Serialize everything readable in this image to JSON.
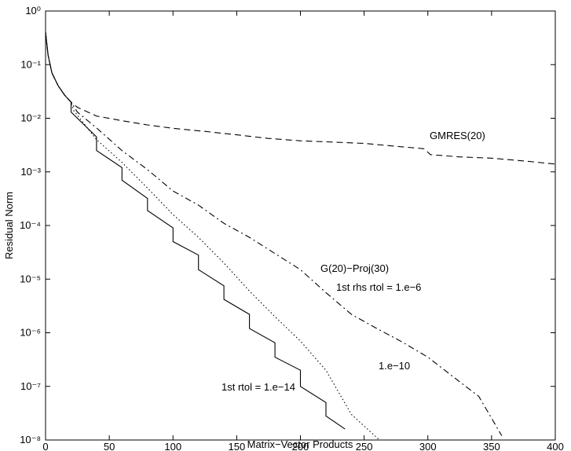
{
  "chart_data": {
    "type": "line",
    "ylog": true,
    "xlabel": "Matrix−Vector Products",
    "ylabel": "Residual Norm",
    "xlim": [
      0,
      400
    ],
    "xticks": [
      0,
      50,
      100,
      150,
      200,
      250,
      300,
      350,
      400
    ],
    "ylim": [
      1e-08,
      1
    ],
    "yticks": [
      {
        "value": 1e-08,
        "label": "10⁻⁸"
      },
      {
        "value": 1e-07,
        "label": "10⁻⁷"
      },
      {
        "value": 1e-06,
        "label": "10⁻⁶"
      },
      {
        "value": 1e-05,
        "label": "10⁻⁵"
      },
      {
        "value": 0.0001,
        "label": "10⁻⁴"
      },
      {
        "value": 0.001,
        "label": "10⁻³"
      },
      {
        "value": 0.01,
        "label": "10⁻²"
      },
      {
        "value": 0.1,
        "label": "10⁻¹"
      },
      {
        "value": 1,
        "label": "10⁰"
      }
    ],
    "series": [
      {
        "color": "#000000",
        "linestyle": "dashed",
        "x": [
          0,
          2,
          5,
          10,
          15,
          20,
          25,
          40,
          60,
          80,
          100,
          125,
          150,
          175,
          200,
          225,
          250,
          275,
          297,
          302,
          325,
          350,
          375,
          400
        ],
        "values": [
          0.4,
          0.15,
          0.07,
          0.04,
          0.027,
          0.02,
          0.016,
          0.011,
          0.009,
          0.0075,
          0.0065,
          0.0057,
          0.0049,
          0.0042,
          0.0038,
          0.0036,
          0.0034,
          0.003,
          0.0027,
          0.0021,
          0.0019,
          0.0018,
          0.0016,
          0.0014
        ]
      },
      {
        "color": "#000000",
        "linestyle": "dashdot",
        "x": [
          0,
          2,
          5,
          10,
          15,
          20,
          25,
          40,
          60,
          80,
          100,
          120,
          140,
          160,
          180,
          200,
          220,
          240,
          260,
          280,
          300,
          320,
          340,
          358
        ],
        "values": [
          0.4,
          0.15,
          0.07,
          0.04,
          0.027,
          0.02,
          0.013,
          0.0066,
          0.0025,
          0.0011,
          0.00044,
          0.00024,
          0.00011,
          6e-05,
          3e-05,
          1.5e-05,
          5.6e-06,
          2.2e-06,
          1.2e-06,
          6.7e-07,
          3.5e-07,
          1.5e-07,
          6.5e-08,
          1.2e-08
        ]
      },
      {
        "color": "#000000",
        "linestyle": "dotted",
        "x": [
          0,
          2,
          5,
          10,
          15,
          20,
          22,
          40,
          60,
          80,
          100,
          120,
          140,
          160,
          180,
          200,
          220,
          240,
          262
        ],
        "values": [
          0.4,
          0.15,
          0.07,
          0.04,
          0.027,
          0.02,
          0.014,
          0.004,
          0.0015,
          0.0005,
          0.00016,
          6e-05,
          2e-05,
          6e-06,
          2e-06,
          7e-07,
          2e-07,
          3e-08,
          1e-08
        ]
      },
      {
        "color": "#000000",
        "linestyle": "solid",
        "x": [
          0,
          2,
          5,
          10,
          15,
          20,
          20,
          40,
          40,
          60,
          60,
          80,
          80,
          100,
          100,
          120,
          120,
          140,
          140,
          160,
          160,
          180,
          180,
          200,
          200,
          220,
          220,
          235
        ],
        "values": [
          0.4,
          0.15,
          0.07,
          0.04,
          0.027,
          0.02,
          0.013,
          0.0045,
          0.0025,
          0.0012,
          0.0007,
          0.00032,
          0.00019,
          9e-05,
          5e-05,
          2.8e-05,
          1.5e-05,
          7.5e-06,
          4.2e-06,
          2.2e-06,
          1.2e-06,
          6.5e-07,
          3.5e-07,
          2e-07,
          1e-07,
          5e-08,
          2.8e-08,
          1.6e-08
        ]
      }
    ],
    "annotations": [
      "GMRES(20)",
      "G(20)−Proj(30)",
      "1st rhs rtol = 1.e−6",
      "1.e−10",
      "1st rtol = 1.e−14"
    ]
  }
}
